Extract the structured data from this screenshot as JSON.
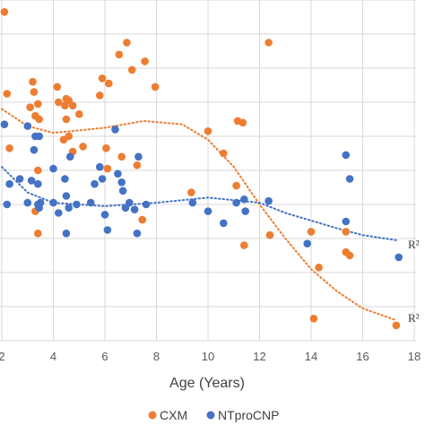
{
  "chart_data": {
    "type": "scatter",
    "xlabel": "Age (Years)",
    "ylabel": "",
    "title": "",
    "xlim": [
      2,
      18
    ],
    "x_ticks": [
      "2",
      "4",
      "6",
      "8",
      "10",
      "12",
      "14",
      "16",
      "18"
    ],
    "y_grid_count": 10,
    "grid": true,
    "legend": {
      "position": "bottom",
      "entries": [
        "CXM",
        "NTproCNP"
      ]
    },
    "trend_labels": [
      "R²",
      "R²"
    ],
    "colors": {
      "CXM": "#ED7D31",
      "NTproCNP": "#4472C4"
    },
    "series": [
      {
        "name": "CXM",
        "color": "#ED7D31",
        "points": [
          [
            2.1,
            9.65
          ],
          [
            2.2,
            7.25
          ],
          [
            3.2,
            7.6
          ],
          [
            3.25,
            7.3
          ],
          [
            3.4,
            6.95
          ],
          [
            3.1,
            6.85
          ],
          [
            3.3,
            6.6
          ],
          [
            3.45,
            6.5
          ],
          [
            2.3,
            5.65
          ],
          [
            3.4,
            5.0
          ],
          [
            3.3,
            3.8
          ],
          [
            3.4,
            3.15
          ],
          [
            4.15,
            7.45
          ],
          [
            4.2,
            7.0
          ],
          [
            4.5,
            7.1
          ],
          [
            4.45,
            6.9
          ],
          [
            4.6,
            7.05
          ],
          [
            4.75,
            6.9
          ],
          [
            4.5,
            6.5
          ],
          [
            4.6,
            6.0
          ],
          [
            4.4,
            5.9
          ],
          [
            4.75,
            5.55
          ],
          [
            5.0,
            6.65
          ],
          [
            5.15,
            5.7
          ],
          [
            5.8,
            7.2
          ],
          [
            5.9,
            7.7
          ],
          [
            6.15,
            7.55
          ],
          [
            6.05,
            5.65
          ],
          [
            6.1,
            5.05
          ],
          [
            6.55,
            8.4
          ],
          [
            6.65,
            5.4
          ],
          [
            6.85,
            8.75
          ],
          [
            7.05,
            7.95
          ],
          [
            7.25,
            5.15
          ],
          [
            7.55,
            8.2
          ],
          [
            7.45,
            3.55
          ],
          [
            7.95,
            7.45
          ],
          [
            9.35,
            4.35
          ],
          [
            10.0,
            6.15
          ],
          [
            10.6,
            5.5
          ],
          [
            11.1,
            4.55
          ],
          [
            11.15,
            6.45
          ],
          [
            11.35,
            6.4
          ],
          [
            11.4,
            2.8
          ],
          [
            12.35,
            8.75
          ],
          [
            12.4,
            3.1
          ],
          [
            14.0,
            3.2
          ],
          [
            14.3,
            2.15
          ],
          [
            14.1,
            0.65
          ],
          [
            15.35,
            3.2
          ],
          [
            15.35,
            2.6
          ],
          [
            15.5,
            2.5
          ],
          [
            17.3,
            0.45
          ]
        ]
      },
      {
        "name": "NTproCNP",
        "color": "#4472C4",
        "points": [
          [
            2.1,
            6.35
          ],
          [
            2.3,
            4.6
          ],
          [
            2.7,
            4.75
          ],
          [
            2.2,
            4.0
          ],
          [
            3.0,
            6.3
          ],
          [
            3.3,
            6.0
          ],
          [
            3.25,
            5.6
          ],
          [
            3.45,
            6.0
          ],
          [
            3.15,
            4.7
          ],
          [
            3.4,
            4.6
          ],
          [
            3.0,
            4.05
          ],
          [
            3.4,
            4.0
          ],
          [
            3.5,
            4.05
          ],
          [
            3.45,
            3.9
          ],
          [
            4.0,
            5.05
          ],
          [
            4.0,
            4.05
          ],
          [
            4.2,
            3.75
          ],
          [
            4.45,
            4.75
          ],
          [
            4.65,
            5.4
          ],
          [
            4.5,
            4.25
          ],
          [
            4.6,
            3.9
          ],
          [
            4.5,
            3.15
          ],
          [
            4.9,
            4.0
          ],
          [
            5.45,
            4.05
          ],
          [
            5.6,
            4.6
          ],
          [
            5.8,
            5.1
          ],
          [
            5.9,
            4.75
          ],
          [
            6.0,
            3.7
          ],
          [
            6.1,
            3.25
          ],
          [
            6.4,
            6.2
          ],
          [
            6.5,
            4.9
          ],
          [
            6.65,
            4.65
          ],
          [
            6.7,
            4.4
          ],
          [
            6.8,
            3.9
          ],
          [
            6.95,
            4.05
          ],
          [
            7.15,
            3.85
          ],
          [
            7.25,
            3.15
          ],
          [
            7.3,
            5.4
          ],
          [
            7.6,
            4.0
          ],
          [
            9.4,
            4.05
          ],
          [
            10.0,
            3.8
          ],
          [
            10.6,
            3.45
          ],
          [
            11.1,
            4.05
          ],
          [
            11.4,
            4.15
          ],
          [
            11.45,
            3.8
          ],
          [
            12.35,
            4.1
          ],
          [
            13.85,
            2.85
          ],
          [
            15.35,
            5.45
          ],
          [
            15.5,
            4.75
          ],
          [
            15.35,
            3.5
          ],
          [
            17.4,
            2.45
          ]
        ]
      }
    ],
    "trendlines": [
      {
        "series": "CXM",
        "style": "dotted",
        "points": [
          [
            2.0,
            6.8
          ],
          [
            3.0,
            6.3
          ],
          [
            4.0,
            6.1
          ],
          [
            6.0,
            6.25
          ],
          [
            7.5,
            6.45
          ],
          [
            9.0,
            6.35
          ],
          [
            10.0,
            5.9
          ],
          [
            11.0,
            5.1
          ],
          [
            12.0,
            4.0
          ],
          [
            13.0,
            3.0
          ],
          [
            14.0,
            2.1
          ],
          [
            15.0,
            1.45
          ],
          [
            16.0,
            0.95
          ],
          [
            17.3,
            0.6
          ]
        ]
      },
      {
        "series": "NTproCNP",
        "style": "dotted",
        "points": [
          [
            2.0,
            5.1
          ],
          [
            3.0,
            4.35
          ],
          [
            4.0,
            4.05
          ],
          [
            6.0,
            3.95
          ],
          [
            8.0,
            4.05
          ],
          [
            10.0,
            4.2
          ],
          [
            12.0,
            4.05
          ],
          [
            13.0,
            3.75
          ],
          [
            15.0,
            3.3
          ],
          [
            16.0,
            3.1
          ],
          [
            17.3,
            2.95
          ]
        ]
      }
    ]
  }
}
